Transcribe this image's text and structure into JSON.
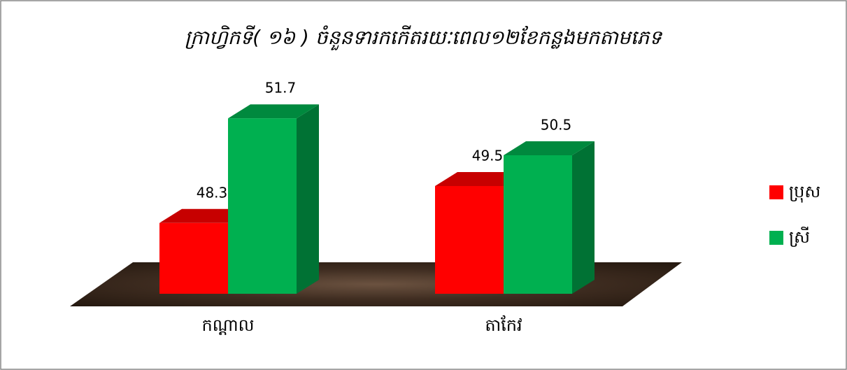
{
  "chart_data": {
    "type": "bar3d",
    "title": "ក្រាហ្វិកទី( ១៦ ) ចំនួនទារកកើតរយៈពេល១២ខែកន្លងមកតាមភេទ",
    "categories": [
      "កណ្តាល",
      "តាកែវ"
    ],
    "series": [
      {
        "name": "ប្រុស",
        "color": "#ff0000",
        "values": [
          48.3,
          49.5
        ]
      },
      {
        "name": "ស្រី",
        "color": "#00b050",
        "values": [
          51.7,
          50.5
        ]
      }
    ],
    "ylim": [
      46,
      52
    ],
    "legend": "right"
  }
}
